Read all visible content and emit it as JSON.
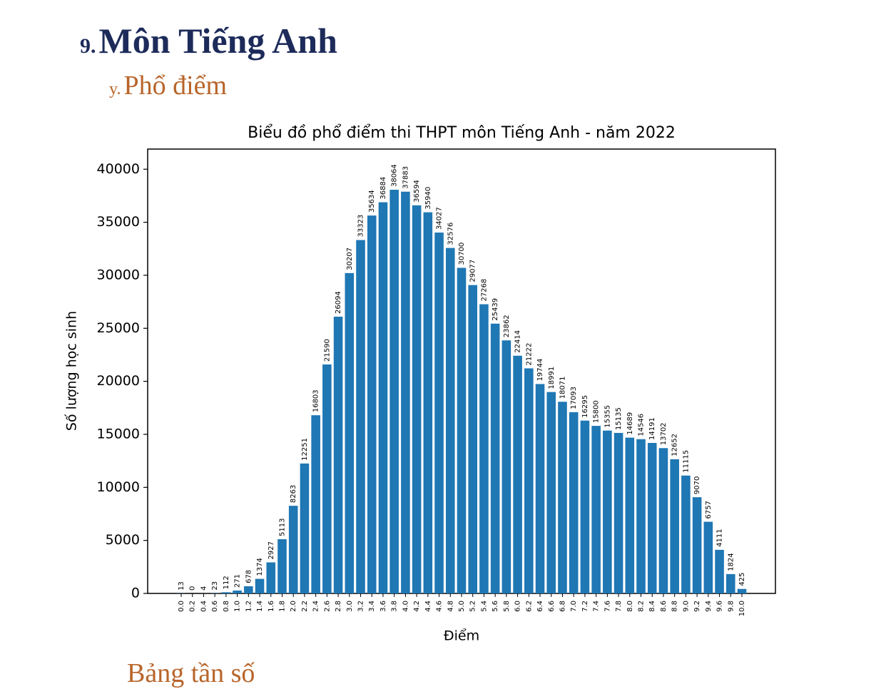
{
  "heading": {
    "number": "9.",
    "title": "Môn Tiếng Anh"
  },
  "subheading": {
    "number": "y.",
    "title": "Phổ điểm"
  },
  "chart_data": {
    "type": "bar",
    "title": "Biểu đồ phổ điểm thi THPT môn Tiếng Anh - năm 2022",
    "x_label": "Điểm",
    "y_label": "Số lượng học sinh",
    "categories": [
      "0.0",
      "0.2",
      "0.4",
      "0.6",
      "0.8",
      "1.0",
      "1.2",
      "1.4",
      "1.6",
      "1.8",
      "2.0",
      "2.2",
      "2.4",
      "2.6",
      "2.8",
      "3.0",
      "3.2",
      "3.4",
      "3.6",
      "3.8",
      "4.0",
      "4.2",
      "4.4",
      "4.6",
      "4.8",
      "5.0",
      "5.2",
      "5.4",
      "5.6",
      "5.8",
      "6.0",
      "6.2",
      "6.4",
      "6.6",
      "6.8",
      "7.0",
      "7.2",
      "7.4",
      "7.6",
      "7.8",
      "8.0",
      "8.2",
      "8.4",
      "8.6",
      "8.8",
      "9.0",
      "9.2",
      "9.4",
      "9.6",
      "9.8",
      "10.0"
    ],
    "values": [
      13,
      0,
      4,
      23,
      112,
      271,
      678,
      1374,
      2927,
      5113,
      8263,
      12251,
      16803,
      21590,
      26094,
      30207,
      33323,
      35634,
      36884,
      38064,
      37883,
      36594,
      35940,
      34027,
      32576,
      30700,
      29077,
      27268,
      25439,
      23862,
      22414,
      21222,
      19744,
      18991,
      18071,
      17093,
      16295,
      15800,
      15355,
      15135,
      14689,
      14546,
      14191,
      13702,
      12652,
      11115,
      9070,
      6757,
      4111,
      1824,
      425
    ],
    "color": "#1f77b4",
    "ylim": [
      0,
      41900
    ],
    "yticks": [
      0,
      5000,
      10000,
      15000,
      20000,
      25000,
      30000,
      35000,
      40000
    ],
    "grid": false
  },
  "next_heading": "Bảng tần số"
}
